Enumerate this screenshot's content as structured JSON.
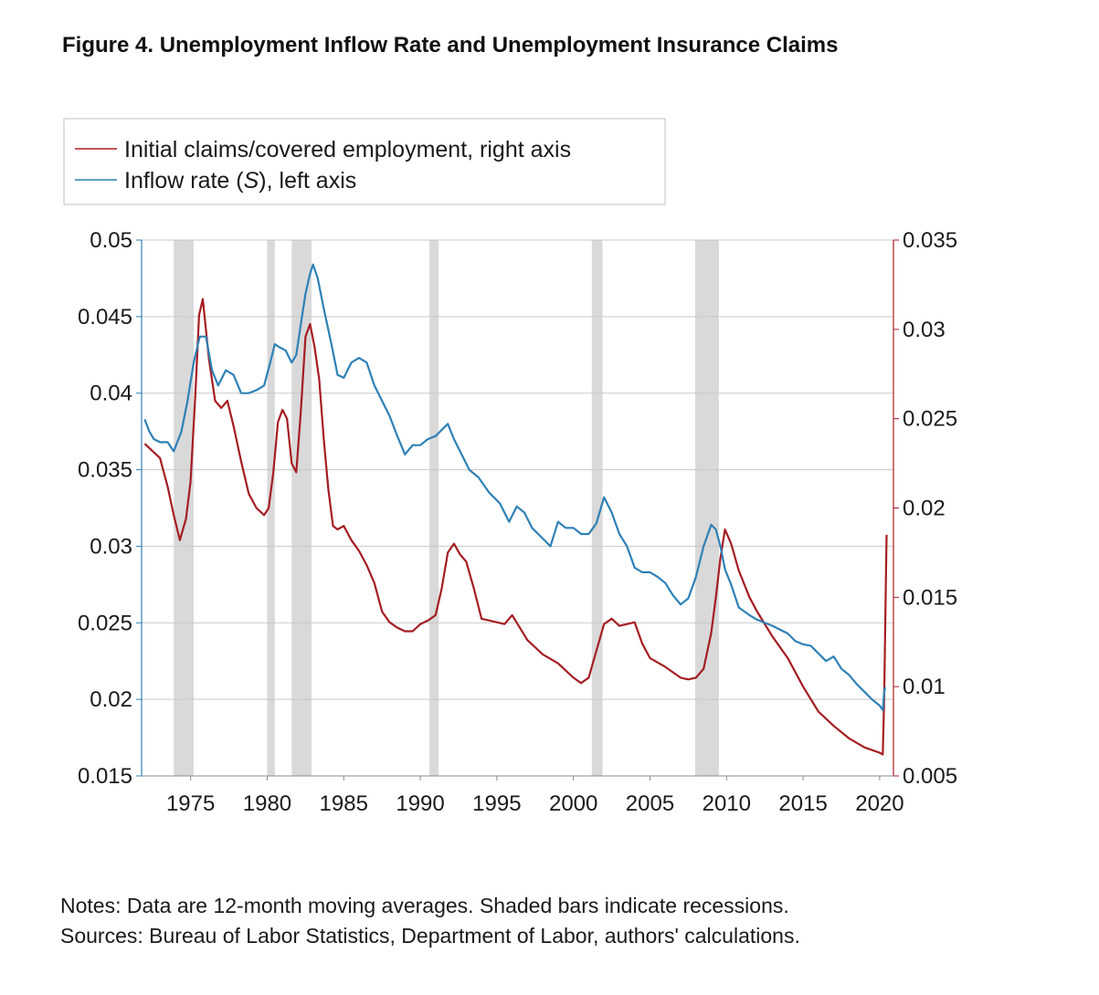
{
  "title": "Figure 4. Unemployment Inflow Rate and Unemployment Insurance Claims",
  "notes": {
    "line1": "Notes: Data are 12-month moving averages. Shaded bars indicate recessions.",
    "line2": "Sources: Bureau of Labor Statistics, Department of Labor, authors' calculations."
  },
  "chart_data": {
    "type": "line",
    "legend_position": "top-left",
    "series": [
      {
        "name": "Initial claims/covered employment, right axis",
        "axis": "right",
        "color": "#a51d22",
        "x": [
          1972.0,
          1972.5,
          1973.0,
          1973.5,
          1973.9,
          1974.3,
          1974.7,
          1975.0,
          1975.3,
          1975.55,
          1975.8,
          1976.2,
          1976.6,
          1977.0,
          1977.4,
          1977.8,
          1978.3,
          1978.8,
          1979.3,
          1979.8,
          1980.1,
          1980.4,
          1980.7,
          1981.0,
          1981.3,
          1981.6,
          1981.9,
          1982.2,
          1982.5,
          1982.8,
          1983.1,
          1983.4,
          1983.7,
          1984.0,
          1984.3,
          1984.6,
          1985.0,
          1985.5,
          1986.0,
          1986.5,
          1987.0,
          1987.5,
          1988.0,
          1988.5,
          1989.0,
          1989.5,
          1990.0,
          1990.5,
          1991.0,
          1991.4,
          1991.8,
          1992.2,
          1992.6,
          1993.0,
          1993.5,
          1994.0,
          1995.0,
          1995.5,
          1996.0,
          1996.5,
          1997.0,
          1998.0,
          1999.0,
          2000.0,
          2000.5,
          2001.0,
          2001.5,
          2002.0,
          2002.5,
          2003.0,
          2003.5,
          2004.0,
          2004.5,
          2005.0,
          2006.0,
          2007.0,
          2007.5,
          2008.0,
          2008.5,
          2009.0,
          2009.3,
          2009.6,
          2009.9,
          2010.3,
          2010.8,
          2011.5,
          2012.0,
          2013.0,
          2014.0,
          2015.0,
          2016.0,
          2017.0,
          2018.0,
          2019.0,
          2020.0,
          2020.2,
          2020.3,
          2020.4,
          2020.45
        ],
        "values": [
          0.0236,
          0.0232,
          0.0228,
          0.0212,
          0.0196,
          0.0182,
          0.0194,
          0.0215,
          0.0262,
          0.0308,
          0.0317,
          0.0283,
          0.026,
          0.0256,
          0.026,
          0.0246,
          0.0226,
          0.0208,
          0.02,
          0.0196,
          0.02,
          0.022,
          0.0248,
          0.0255,
          0.025,
          0.0225,
          0.022,
          0.0254,
          0.0296,
          0.0303,
          0.029,
          0.0272,
          0.0238,
          0.021,
          0.019,
          0.0188,
          0.019,
          0.0182,
          0.0176,
          0.0168,
          0.0158,
          0.0142,
          0.0136,
          0.0133,
          0.0131,
          0.0131,
          0.0135,
          0.0137,
          0.014,
          0.0155,
          0.0175,
          0.018,
          0.0174,
          0.017,
          0.0155,
          0.0138,
          0.0136,
          0.0135,
          0.014,
          0.0133,
          0.0126,
          0.0118,
          0.0113,
          0.0105,
          0.0102,
          0.0105,
          0.012,
          0.0135,
          0.0138,
          0.0134,
          0.0135,
          0.0136,
          0.0124,
          0.0116,
          0.0111,
          0.0105,
          0.0104,
          0.0105,
          0.011,
          0.013,
          0.015,
          0.0172,
          0.0188,
          0.018,
          0.0165,
          0.015,
          0.0142,
          0.0128,
          0.0116,
          0.01,
          0.0086,
          0.0078,
          0.0071,
          0.0066,
          0.0063,
          0.0062,
          0.0095,
          0.0155,
          0.0185
        ]
      },
      {
        "name": "Inflow rate (S), left axis",
        "axis": "left",
        "color": "#2e81b6",
        "x": [
          1972.0,
          1972.3,
          1972.6,
          1973.0,
          1973.5,
          1973.9,
          1974.4,
          1974.8,
          1975.2,
          1975.6,
          1976.0,
          1976.4,
          1976.8,
          1977.3,
          1977.8,
          1978.3,
          1978.8,
          1979.3,
          1979.8,
          1980.2,
          1980.5,
          1980.8,
          1981.2,
          1981.6,
          1981.9,
          1982.2,
          1982.5,
          1982.8,
          1983.0,
          1983.3,
          1983.7,
          1984.2,
          1984.6,
          1985.0,
          1985.5,
          1986.0,
          1986.5,
          1987.0,
          1987.5,
          1988.0,
          1988.5,
          1989.0,
          1989.5,
          1990.0,
          1990.5,
          1991.0,
          1991.4,
          1991.8,
          1992.2,
          1992.7,
          1993.2,
          1993.8,
          1994.5,
          1995.2,
          1995.8,
          1996.3,
          1996.8,
          1997.3,
          1998.0,
          1998.5,
          1999.0,
          1999.5,
          2000.0,
          2000.5,
          2001.0,
          2001.5,
          2002.0,
          2002.5,
          2003.0,
          2003.5,
          2004.0,
          2004.5,
          2005.0,
          2005.5,
          2006.0,
          2006.5,
          2007.0,
          2007.5,
          2008.0,
          2008.5,
          2009.0,
          2009.3,
          2009.6,
          2009.9,
          2010.3,
          2010.8,
          2011.5,
          2012.0,
          2013.0,
          2014.0,
          2014.5,
          2015.0,
          2015.5,
          2016.0,
          2016.5,
          2017.0,
          2017.5,
          2018.0,
          2018.5,
          2019.0,
          2019.5,
          2020.0,
          2020.2,
          2020.3,
          2020.35
        ],
        "values": [
          0.0383,
          0.0375,
          0.037,
          0.0368,
          0.0368,
          0.0362,
          0.0375,
          0.0395,
          0.042,
          0.0437,
          0.0437,
          0.0415,
          0.0405,
          0.0415,
          0.0412,
          0.04,
          0.04,
          0.0402,
          0.0405,
          0.042,
          0.0432,
          0.043,
          0.0428,
          0.042,
          0.0425,
          0.0445,
          0.0465,
          0.0478,
          0.0484,
          0.0475,
          0.0455,
          0.0432,
          0.0412,
          0.041,
          0.042,
          0.0423,
          0.042,
          0.0405,
          0.0395,
          0.0385,
          0.0372,
          0.036,
          0.0366,
          0.0366,
          0.037,
          0.0372,
          0.0376,
          0.038,
          0.037,
          0.036,
          0.035,
          0.0345,
          0.0335,
          0.0328,
          0.0316,
          0.0326,
          0.0322,
          0.0312,
          0.0305,
          0.03,
          0.0316,
          0.0312,
          0.0312,
          0.0308,
          0.0308,
          0.0315,
          0.0332,
          0.0322,
          0.0308,
          0.03,
          0.0286,
          0.0283,
          0.0283,
          0.028,
          0.0276,
          0.0268,
          0.0262,
          0.0266,
          0.028,
          0.03,
          0.0314,
          0.0311,
          0.03,
          0.0285,
          0.0275,
          0.026,
          0.0255,
          0.0252,
          0.0248,
          0.0243,
          0.0238,
          0.0236,
          0.0235,
          0.023,
          0.0225,
          0.0228,
          0.022,
          0.0216,
          0.021,
          0.0205,
          0.02,
          0.0196,
          0.0193,
          0.0205,
          0.0208
        ]
      }
    ],
    "recessions": [
      [
        1973.9,
        1975.2
      ],
      [
        1980.0,
        1980.5
      ],
      [
        1981.6,
        1982.9
      ],
      [
        1990.6,
        1991.2
      ],
      [
        2001.2,
        2001.9
      ],
      [
        2007.95,
        2009.5
      ]
    ],
    "x_axis": {
      "range": [
        1971.8,
        2020.9
      ],
      "ticks": [
        1975,
        1980,
        1985,
        1990,
        1995,
        2000,
        2005,
        2010,
        2015,
        2020
      ],
      "tick_labels": [
        "1975",
        "1980",
        "1985",
        "1990",
        "1995",
        "2000",
        "2005",
        "2010",
        "2015",
        "2020"
      ]
    },
    "y_left": {
      "range": [
        0.015,
        0.05
      ],
      "ticks": [
        0.015,
        0.02,
        0.025,
        0.03,
        0.035,
        0.04,
        0.045,
        0.05
      ],
      "tick_labels": [
        "0.015",
        "0.02",
        "0.025",
        "0.03",
        "0.035",
        "0.04",
        "0.045",
        "0.05"
      ],
      "color": "#2e81b6"
    },
    "y_right": {
      "range": [
        0.005,
        0.035
      ],
      "ticks": [
        0.005,
        0.01,
        0.015,
        0.02,
        0.025,
        0.03,
        0.035
      ],
      "tick_labels": [
        "0.005",
        "0.01",
        "0.015",
        "0.02",
        "0.025",
        "0.03",
        "0.035"
      ],
      "color": "#a51d22"
    },
    "grid": true,
    "grid_color": "#c8c8c8",
    "recession_color": "#d9d9d9",
    "legend": {
      "claims_label": "Initial claims/covered employment, right axis",
      "inflow_prefix": "Inflow rate (",
      "inflow_var": "S",
      "inflow_suffix": "), left axis"
    }
  }
}
